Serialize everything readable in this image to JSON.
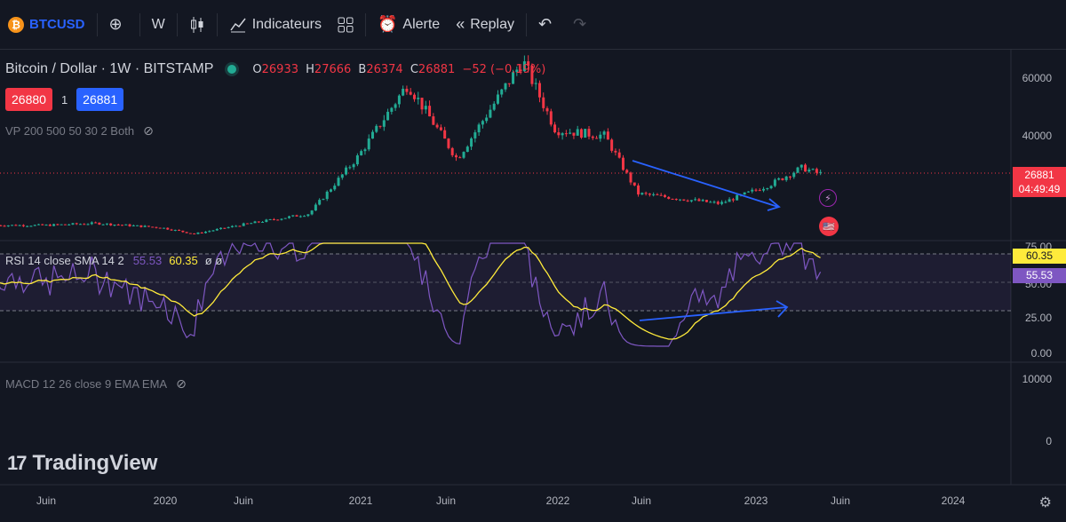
{
  "toolbar": {
    "symbol": "BTCUSD",
    "symbol_icon": "bitcoin-logo",
    "add_icon": "plus-circle-icon",
    "interval": "W",
    "chart_type_icon": "candles-icon",
    "indicators_label": "Indicateurs",
    "indicators_icon": "chart-line-icon",
    "layout_icon": "layout-grid-icon",
    "alert_label": "Alerte",
    "alert_icon": "alarm-clock-icon",
    "replay_label": "Replay",
    "replay_icon": "rewind-icon",
    "undo_icon": "undo-icon",
    "redo_icon": "redo-icon"
  },
  "legend": {
    "title": "Bitcoin / Dollar · 1W · BITSTAMP",
    "o_key": "O",
    "o_val": "26933",
    "h_key": "H",
    "h_val": "27666",
    "l_key": "B",
    "l_val": "26374",
    "c_key": "C",
    "c_val": "26881",
    "change": "−52 (−0.19%)"
  },
  "trade": {
    "bid": "26880",
    "qty": "1",
    "ask": "26881"
  },
  "indicators": {
    "vp": "VP 200 500 50 30 2 Both",
    "rsi_name": "RSI 14 close SMA 14 2",
    "rsi_value": "55.53",
    "rsi_ma_value": "60.35",
    "rsi_extra": "ø ø",
    "macd": "MACD 12 26 close 9 EMA EMA"
  },
  "price_axis": {
    "labels": [
      "60000",
      "40000"
    ],
    "last_price": "26881",
    "countdown": "04:49:49"
  },
  "rsi_axis": {
    "labels": [
      "75.00",
      "50.00",
      "25.00",
      "0.00"
    ],
    "tag_ma": "60.35",
    "tag_rsi": "55.53"
  },
  "macd_axis": {
    "labels": [
      "10000",
      "0"
    ]
  },
  "time_axis": [
    "Juin",
    "2020",
    "Juin",
    "2021",
    "Juin",
    "2022",
    "Juin",
    "2023",
    "Juin",
    "2024"
  ],
  "branding": "TradingView",
  "colors": {
    "up": "#22ab94",
    "down": "#f23645",
    "rsi_line": "#7e57c2",
    "rsi_ma": "#ffeb3b",
    "trendline": "#2962ff",
    "background": "#131722"
  },
  "chart_data": {
    "type": "candlestick",
    "title": "Bitcoin / Dollar · 1W · BITSTAMP",
    "price_range": [
      0,
      70000
    ],
    "series": [
      {
        "name": "BTCUSD",
        "date": "2019-06",
        "close": 9000
      },
      {
        "name": "BTCUSD",
        "date": "2019-09",
        "close": 9700
      },
      {
        "name": "BTCUSD",
        "date": "2020-01",
        "close": 8200
      },
      {
        "name": "BTCUSD",
        "date": "2020-03",
        "close": 6000
      },
      {
        "name": "BTCUSD",
        "date": "2020-06",
        "close": 9300
      },
      {
        "name": "BTCUSD",
        "date": "2020-10",
        "close": 13000
      },
      {
        "name": "BTCUSD",
        "date": "2021-01",
        "close": 33000
      },
      {
        "name": "BTCUSD",
        "date": "2021-04",
        "close": 58000
      },
      {
        "name": "BTCUSD",
        "date": "2021-07",
        "close": 32000
      },
      {
        "name": "BTCUSD",
        "date": "2021-11",
        "close": 66000
      },
      {
        "name": "BTCUSD",
        "date": "2022-01",
        "close": 42000
      },
      {
        "name": "BTCUSD",
        "date": "2022-04",
        "close": 40000
      },
      {
        "name": "BTCUSD",
        "date": "2022-06",
        "close": 20000
      },
      {
        "name": "BTCUSD",
        "date": "2022-11",
        "close": 16500
      },
      {
        "name": "BTCUSD",
        "date": "2023-02",
        "close": 23000
      },
      {
        "name": "BTCUSD",
        "date": "2023-04",
        "close": 29000
      },
      {
        "name": "BTCUSD",
        "date": "2023-05",
        "close": 26881
      }
    ],
    "rsi": {
      "last": 55.53,
      "ma_last": 60.35,
      "upper": 70,
      "lower": 30
    }
  }
}
